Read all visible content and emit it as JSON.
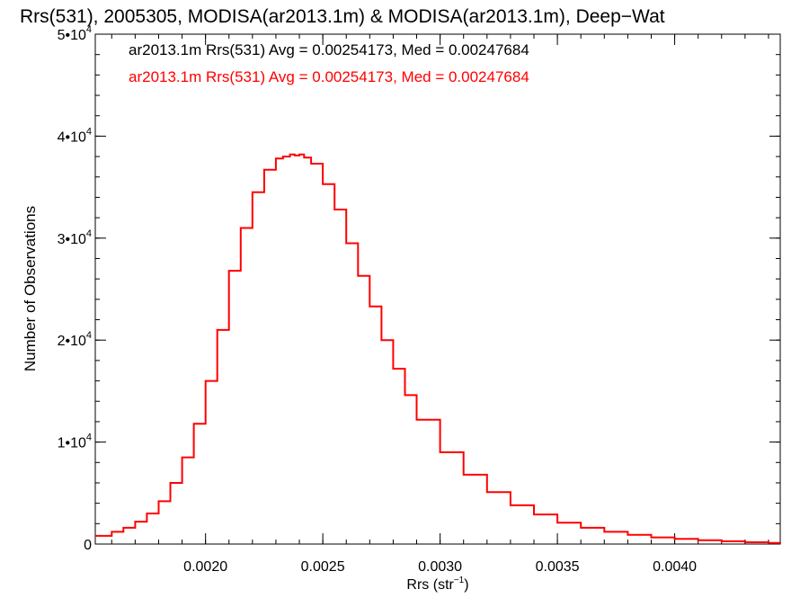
{
  "chart_data": {
    "type": "line",
    "title": "Rrs(531), 2005305, MODISA(ar2013.1m) & MODISA(ar2013.1m), Deep−Wat",
    "xlabel": "Rrs (str",
    "xlabel_sup": "−1",
    "xlabel_close": ")",
    "ylabel": "Number of Observations",
    "xlim": [
      0.00153,
      0.00445
    ],
    "ylim": [
      0,
      50000
    ],
    "x_ticks": [
      {
        "value": 0.002,
        "label": "0.0020"
      },
      {
        "value": 0.0025,
        "label": "0.0025"
      },
      {
        "value": 0.003,
        "label": "0.0030"
      },
      {
        "value": 0.0035,
        "label": "0.0035"
      },
      {
        "value": 0.004,
        "label": "0.0040"
      }
    ],
    "y_ticks": [
      {
        "value": 0,
        "base": "0",
        "exp": ""
      },
      {
        "value": 10000,
        "base": "1•10",
        "exp": "4"
      },
      {
        "value": 20000,
        "base": "2•10",
        "exp": "4"
      },
      {
        "value": 30000,
        "base": "3•10",
        "exp": "4"
      },
      {
        "value": 40000,
        "base": "4•10",
        "exp": "4"
      },
      {
        "value": 50000,
        "base": "5•10",
        "exp": "4"
      }
    ],
    "x_minor_step": 0.0001,
    "y_minor_step": 2000,
    "legend": [
      {
        "text": "ar2013.1m Rrs(531) Avg = 0.00254173, Med = 0.00247684",
        "color": "#000000"
      },
      {
        "text": "ar2013.1m Rrs(531) Avg = 0.00254173, Med = 0.00247684",
        "color": "#ff0000"
      }
    ],
    "series": [
      {
        "color": "#ff0000",
        "style": "step",
        "x": [
          0.00153,
          0.0016,
          0.00165,
          0.0017,
          0.00175,
          0.0018,
          0.00185,
          0.0019,
          0.00195,
          0.002,
          0.00205,
          0.0021,
          0.00215,
          0.0022,
          0.00225,
          0.0023,
          0.00233,
          0.00236,
          0.00238,
          0.0024,
          0.00242,
          0.00245,
          0.0025,
          0.00255,
          0.0026,
          0.00265,
          0.0027,
          0.00275,
          0.0028,
          0.00285,
          0.0029,
          0.003,
          0.0031,
          0.0032,
          0.0033,
          0.0034,
          0.0035,
          0.0036,
          0.0037,
          0.0038,
          0.0039,
          0.004,
          0.0041,
          0.0042,
          0.0043,
          0.0044,
          0.00445
        ],
        "y": [
          800,
          1200,
          1600,
          2200,
          3000,
          4200,
          6000,
          8500,
          11800,
          16000,
          21000,
          26800,
          31000,
          34500,
          36700,
          37800,
          38000,
          38200,
          38100,
          38200,
          37900,
          37300,
          35300,
          32800,
          29500,
          26300,
          23300,
          20000,
          17200,
          14600,
          12200,
          9000,
          6800,
          5100,
          3800,
          2900,
          2100,
          1600,
          1200,
          900,
          650,
          500,
          380,
          270,
          180,
          110,
          80
        ]
      }
    ]
  }
}
